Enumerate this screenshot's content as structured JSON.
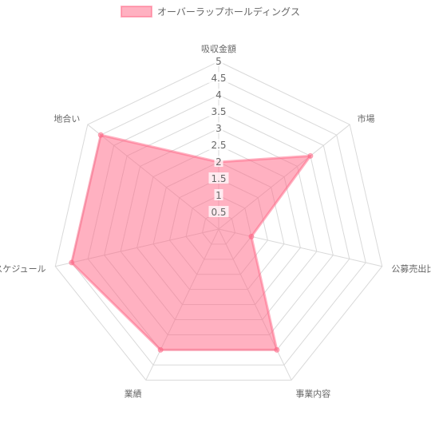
{
  "chart_data": {
    "type": "radar",
    "axes": [
      "吸収金額",
      "市場",
      "公募売出比",
      "事業内容",
      "業績",
      "スケジュール",
      "地合い"
    ],
    "series": [
      {
        "name": "オーバーラップホールディングス",
        "values": [
          2,
          3.5,
          1,
          4,
          4,
          4.5,
          4.5
        ],
        "fill": "rgba(255,99,132,0.5)",
        "stroke": "rgba(255,99,132,0.5)"
      }
    ],
    "r_range": [
      0,
      5
    ],
    "r_ticks": [
      "0.5",
      "1",
      "1.5",
      "2",
      "2.5",
      "3",
      "3.5",
      "4",
      "4.5",
      "5"
    ],
    "grid": true,
    "legend_position": "top"
  }
}
